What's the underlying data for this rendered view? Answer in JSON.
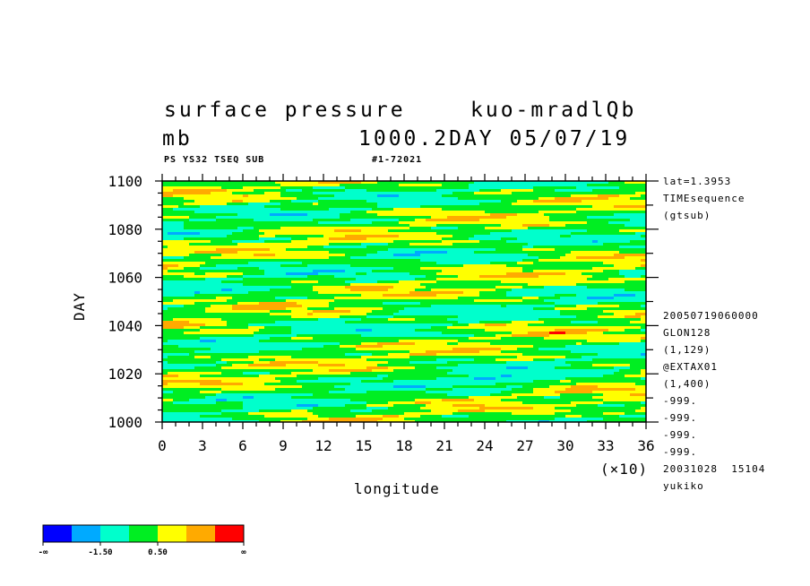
{
  "header": {
    "title_left": "surface pressure",
    "title_right": "kuo-mradlQb",
    "units": "mb",
    "run_info": "1000.2DAY 05/07/19",
    "sub_left": "PS YS32 TSEQ SUB",
    "sub_right": "#1-72021"
  },
  "side_info": {
    "top": [
      "lat=1.3953",
      "TIMEsequence",
      "(gtsub)"
    ],
    "bottom": [
      "20050719060000",
      "GLON128",
      "(1,129)",
      "@EXTAX01",
      "(1,400)",
      "-999.",
      "-999.",
      "-999.",
      "-999.",
      "20031028  15104",
      "yukiko"
    ]
  },
  "colorbar": {
    "colors": [
      "#0000ff",
      "#00aaff",
      "#00ffcc",
      "#00ee22",
      "#ffff00",
      "#ffaa00",
      "#ff0000"
    ],
    "labels": [
      "-∞",
      "-1.50",
      "0.50",
      "∞"
    ]
  },
  "chart_data": {
    "type": "heatmap",
    "xlabel": "longitude",
    "ylabel": "DAY",
    "x_multiplier": "(×10)",
    "xlim": [
      0,
      36
    ],
    "ylim": [
      1000,
      1100
    ],
    "x_ticks": [
      "0",
      "3",
      "6",
      "9",
      "12",
      "15",
      "18",
      "21",
      "24",
      "27",
      "30",
      "33",
      "36"
    ],
    "y_ticks": [
      "1000",
      "1020",
      "1040",
      "1060",
      "1080",
      "1100"
    ],
    "color_levels": [
      "-∞",
      "-1.50",
      "0.50",
      "∞"
    ],
    "features": [
      {
        "x": 8,
        "y": 1055,
        "level": "high"
      },
      {
        "x": 19,
        "y": 1044,
        "level": "high"
      },
      {
        "x": 16,
        "y": 1021,
        "level": "high"
      },
      {
        "x": 27,
        "y": 1054,
        "level": "low"
      },
      {
        "x": 13,
        "y": 1093,
        "level": "low"
      },
      {
        "x": 25,
        "y": 1082,
        "level": "high"
      },
      {
        "x": 3,
        "y": 1011,
        "level": "high"
      }
    ]
  }
}
